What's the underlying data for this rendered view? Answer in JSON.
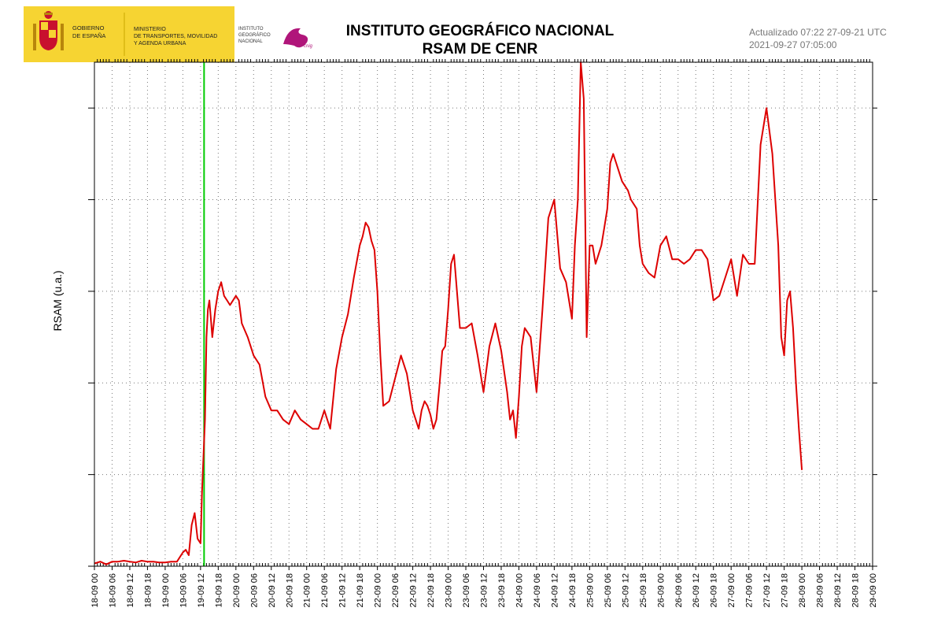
{
  "header": {
    "title_line1": "INSTITUTO GEOGRÁFICO NACIONAL",
    "title_line2": "RSAM DE CENR",
    "updated_line1": "Actualizado 07:22 27-09-21 UTC",
    "updated_line2": "2021-09-27 07:05:00"
  },
  "logo": {
    "gobierno": [
      "GOBIERNO",
      "DE ESPAÑA"
    ],
    "ministerio": [
      "MINISTERIO",
      "DE TRANSPORTES, MOVILIDAD",
      "Y AGENDA URBANA"
    ],
    "instituto": [
      "INSTITUTO",
      "GEOGRÁFICO",
      "NACIONAL"
    ],
    "instituto_mark": "cnig",
    "colors": {
      "yellow": "#f6d432",
      "red": "#c8102e",
      "magenta": "#b0157a"
    }
  },
  "chart_data": {
    "type": "line",
    "title": "RSAM DE CENR",
    "ylabel": "RSAM (u.a.)",
    "xlabel": "",
    "x_unit": "hours since 18-09 00:00",
    "xlim": [
      0,
      264
    ],
    "ylim": [
      0,
      5.5
    ],
    "y_tick_values": [
      0,
      1,
      2,
      3,
      4,
      5
    ],
    "y_tick_labels_visible": false,
    "grid": true,
    "x_tick_labels": [
      "18-09 00",
      "18-09 06",
      "18-09 12",
      "18-09 18",
      "19-09 00",
      "19-09 06",
      "19-09 12",
      "19-09 18",
      "20-09 00",
      "20-09 06",
      "20-09 12",
      "20-09 18",
      "21-09 00",
      "21-09 06",
      "21-09 12",
      "21-09 18",
      "22-09 00",
      "22-09 06",
      "22-09 12",
      "22-09 18",
      "23-09 00",
      "23-09 06",
      "23-09 12",
      "23-09 18",
      "24-09 00",
      "24-09 06",
      "24-09 12",
      "24-09 18",
      "25-09 00",
      "25-09 06",
      "25-09 12",
      "25-09 18",
      "26-09 00",
      "26-09 06",
      "26-09 12",
      "26-09 18",
      "27-09 00",
      "27-09 06",
      "27-09 12",
      "27-09 18",
      "28-09 00",
      "28-09 06",
      "28-09 12",
      "28-09 18",
      "29-09 00"
    ],
    "colors": {
      "series": "#dd0000",
      "marker": "#00cc00",
      "grid": "#777777",
      "axis": "#000000"
    },
    "marker_line": {
      "x": 37.2
    },
    "series": [
      {
        "x": [
          0,
          2,
          4,
          6,
          8,
          10,
          12,
          14,
          16,
          18,
          20,
          22,
          24,
          26,
          28,
          30,
          31,
          32,
          33,
          34,
          35,
          36,
          36.5,
          37,
          37.5,
          38,
          38.5,
          39,
          39.5,
          40,
          41,
          42,
          43,
          44,
          45,
          46,
          47,
          48,
          49,
          50,
          52,
          54,
          56,
          58,
          60,
          62,
          64,
          66,
          68,
          70,
          72,
          74,
          76,
          78,
          80,
          82,
          84,
          86,
          88,
          90,
          91,
          92,
          93,
          94,
          95,
          96,
          97,
          98,
          100,
          102,
          104,
          106,
          108,
          110,
          111,
          112,
          113,
          114,
          115,
          116,
          117,
          118,
          119,
          120,
          121,
          122,
          124,
          126,
          128,
          130,
          132,
          134,
          136,
          138,
          140,
          141,
          142,
          143,
          144,
          145,
          146,
          148,
          150,
          152,
          154,
          156,
          158,
          160,
          162,
          163,
          164,
          165,
          166,
          167,
          168,
          169,
          170,
          171,
          172,
          173,
          174,
          175,
          176,
          177,
          178,
          179,
          180,
          181,
          182,
          183,
          184,
          185,
          186,
          188,
          190,
          192,
          194,
          196,
          198,
          200,
          202,
          204,
          206,
          208,
          210,
          212,
          214,
          216,
          218,
          220,
          222,
          224,
          226,
          228,
          230,
          232,
          233,
          234,
          235,
          236,
          237,
          238,
          239,
          240
        ],
        "y": [
          0.03,
          0.05,
          0.02,
          0.05,
          0.05,
          0.06,
          0.05,
          0.04,
          0.06,
          0.05,
          0.05,
          0.04,
          0.04,
          0.05,
          0.05,
          0.15,
          0.18,
          0.12,
          0.45,
          0.58,
          0.3,
          0.25,
          0.8,
          1.2,
          1.6,
          2.5,
          2.8,
          2.9,
          2.7,
          2.5,
          2.8,
          3.0,
          3.1,
          2.95,
          2.9,
          2.85,
          2.9,
          2.95,
          2.9,
          2.65,
          2.5,
          2.3,
          2.2,
          1.85,
          1.7,
          1.7,
          1.6,
          1.55,
          1.7,
          1.6,
          1.55,
          1.5,
          1.5,
          1.7,
          1.5,
          2.15,
          2.5,
          2.75,
          3.15,
          3.5,
          3.6,
          3.75,
          3.7,
          3.55,
          3.45,
          3.0,
          2.3,
          1.75,
          1.8,
          2.05,
          2.3,
          2.1,
          1.7,
          1.5,
          1.7,
          1.8,
          1.75,
          1.65,
          1.5,
          1.6,
          1.95,
          2.35,
          2.4,
          2.8,
          3.3,
          3.4,
          2.6,
          2.6,
          2.65,
          2.3,
          1.9,
          2.4,
          2.65,
          2.35,
          1.9,
          1.6,
          1.7,
          1.4,
          1.85,
          2.4,
          2.6,
          2.5,
          1.9,
          2.8,
          3.8,
          4.0,
          3.25,
          3.1,
          2.7,
          3.5,
          4.0,
          5.5,
          5.1,
          2.5,
          3.5,
          3.5,
          3.3,
          3.4,
          3.5,
          3.7,
          3.9,
          4.4,
          4.5,
          4.4,
          4.3,
          4.2,
          4.15,
          4.1,
          4.0,
          3.95,
          3.9,
          3.5,
          3.3,
          3.2,
          3.15,
          3.5,
          3.6,
          3.35,
          3.35,
          3.3,
          3.35,
          3.45,
          3.45,
          3.35,
          2.9,
          2.95,
          3.15,
          3.35,
          2.95,
          3.4,
          3.3,
          3.3,
          4.6,
          5.0,
          4.5,
          3.5,
          2.5,
          2.3,
          2.9,
          3.0,
          2.6,
          2.0,
          1.5,
          1.05
        ]
      }
    ]
  }
}
